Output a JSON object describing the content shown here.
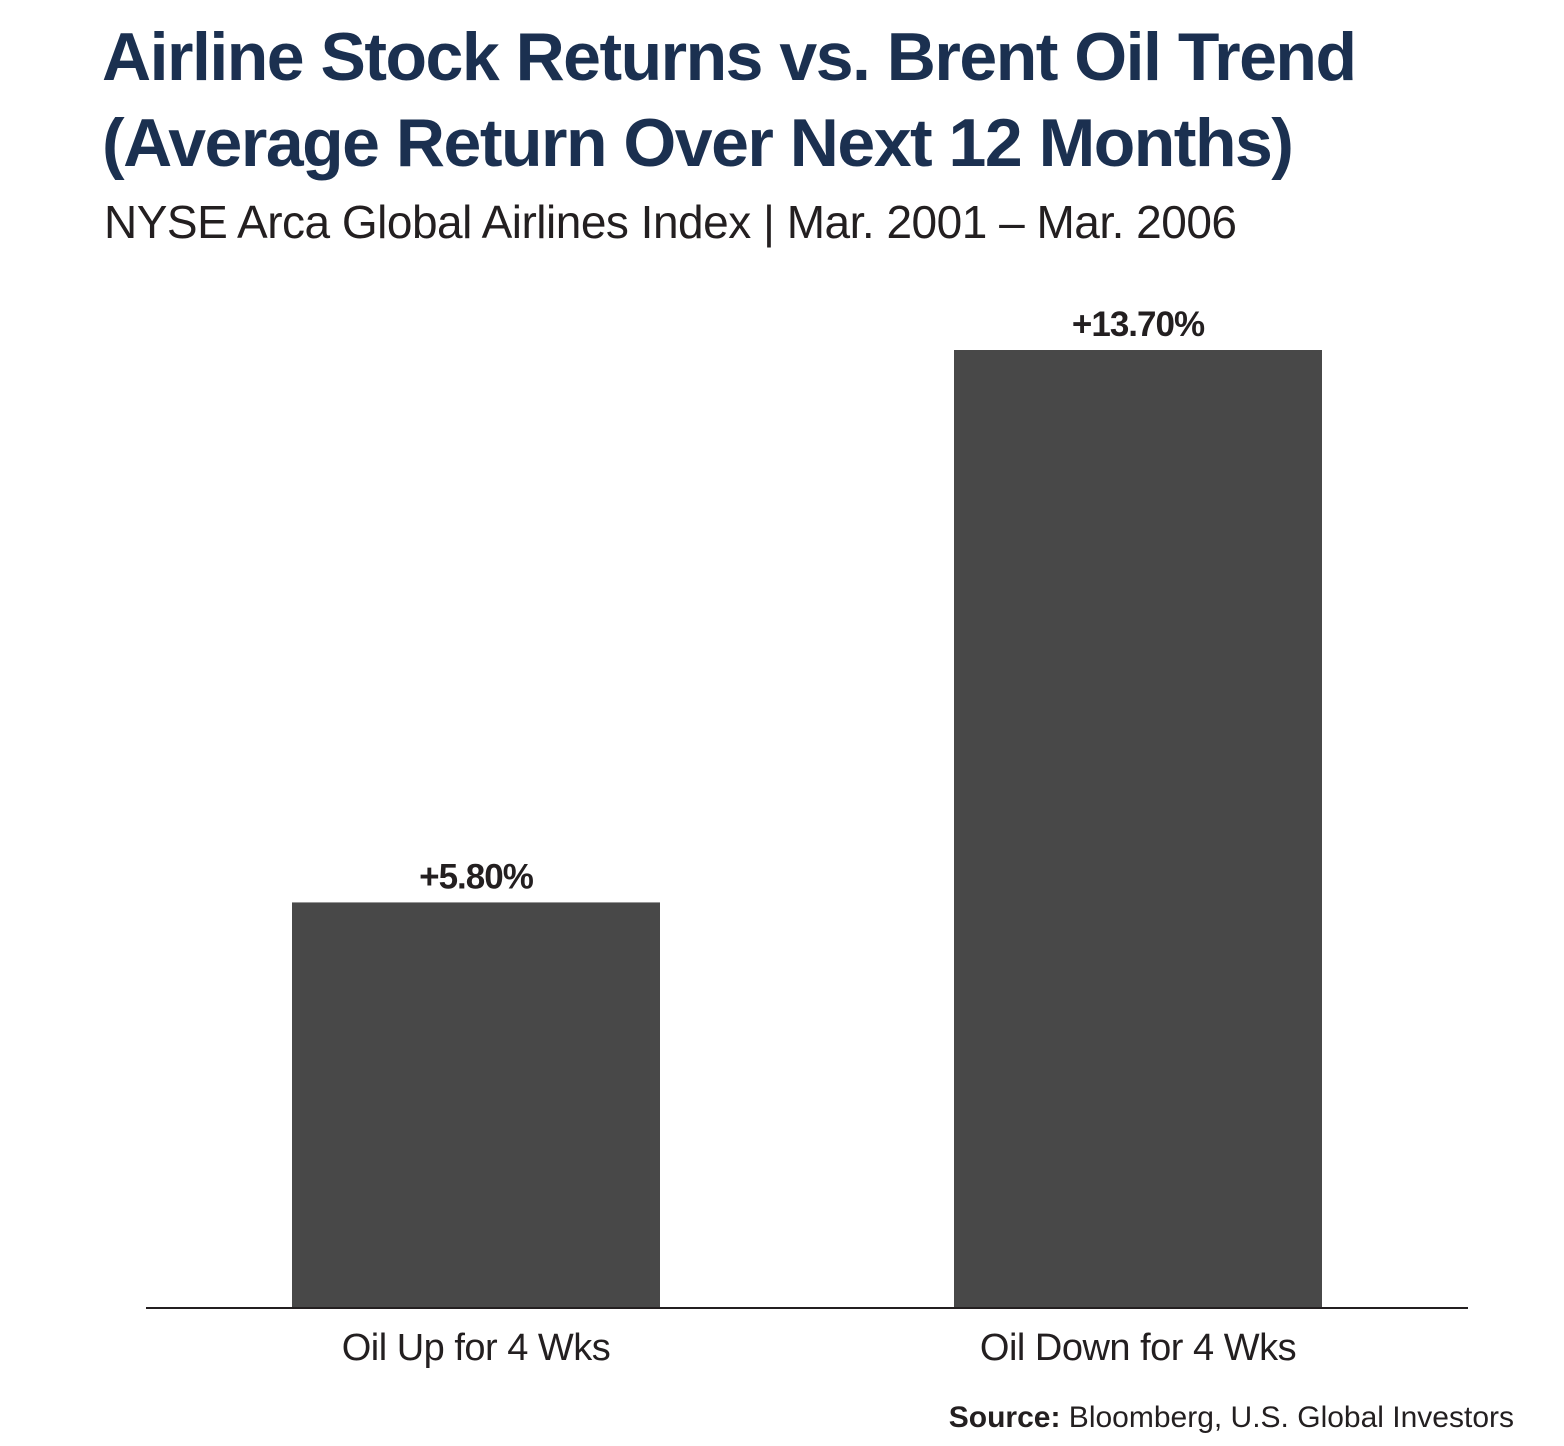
{
  "chart_data": {
    "type": "bar",
    "title_lines": [
      "Airline Stock Returns vs. Brent Oil Trend",
      "(Average Return Over Next 12 Months)"
    ],
    "subtitle": "NYSE Arca Global Airlines Index | Mar. 2001 – Mar. 2006",
    "categories": [
      "Oil Up for 4 Wks",
      "Oil Down for 4 Wks"
    ],
    "values": [
      5.8,
      13.7
    ],
    "value_labels": [
      "+5.80%",
      "+13.70%"
    ],
    "unit": "%",
    "ylim": [
      0,
      13.7
    ],
    "xlabel": "",
    "ylabel": "",
    "grid": false,
    "legend": false,
    "bar_color": "#484848",
    "axis_color": "#231f20",
    "title_color": "#1b3050"
  },
  "source": {
    "label": "Source:",
    "text": " Bloomberg, U.S. Global Investors"
  }
}
